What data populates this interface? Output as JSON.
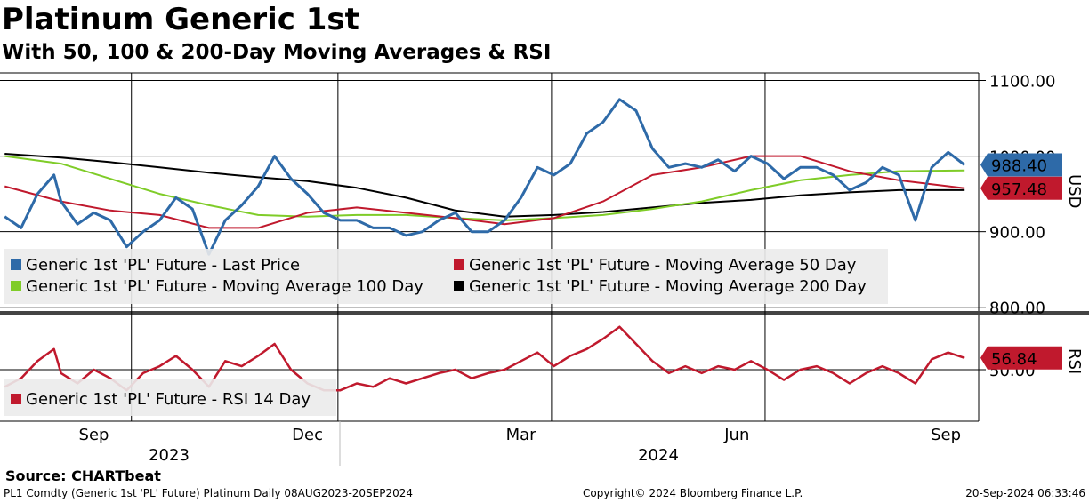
{
  "header": {
    "title": "Platinum Generic 1st",
    "subtitle": "With 50, 100 & 200-Day Moving Averages & RSI"
  },
  "footer": {
    "source": "Source: CHARTbeat",
    "ticker_info": "PL1 Comdty (Generic 1st 'PL' Future) Platinum  Daily 08AUG2023-20SEP2024",
    "copyright": "Copyright© 2024 Bloomberg Finance L.P.",
    "timestamp": "20-Sep-2024 06:33:46"
  },
  "chart_data": [
    {
      "type": "line",
      "panel": "price",
      "y_axis_label": "USD",
      "y_ticks": [
        "1100.00",
        "900.00",
        "800.00"
      ],
      "ylim": [
        795,
        1110
      ],
      "grid": true,
      "legend_position": "bottom-left",
      "x_months": [
        "Sep",
        "Dec",
        "Mar",
        "Jun",
        "Sep"
      ],
      "x_years": [
        "2023",
        "2024"
      ],
      "last_price_label": "988.40",
      "ma50_label": "957.48",
      "series": [
        {
          "name": "Generic 1st 'PL' Future - Last Price",
          "color": "#2e6aa8",
          "x": [
            "2023-08-08",
            "2023-08-15",
            "2023-08-22",
            "2023-08-29",
            "2023-09-01",
            "2023-09-08",
            "2023-09-15",
            "2023-09-22",
            "2023-09-29",
            "2023-10-06",
            "2023-10-13",
            "2023-10-20",
            "2023-10-27",
            "2023-11-03",
            "2023-11-10",
            "2023-11-17",
            "2023-11-24",
            "2023-12-01",
            "2023-12-08",
            "2023-12-15",
            "2023-12-22",
            "2023-12-29",
            "2024-01-05",
            "2024-01-12",
            "2024-01-19",
            "2024-01-26",
            "2024-02-02",
            "2024-02-09",
            "2024-02-16",
            "2024-02-23",
            "2024-03-01",
            "2024-03-08",
            "2024-03-15",
            "2024-03-22",
            "2024-03-29",
            "2024-04-05",
            "2024-04-12",
            "2024-04-19",
            "2024-04-26",
            "2024-05-03",
            "2024-05-10",
            "2024-05-17",
            "2024-05-24",
            "2024-05-31",
            "2024-06-07",
            "2024-06-14",
            "2024-06-21",
            "2024-06-28",
            "2024-07-05",
            "2024-07-12",
            "2024-07-19",
            "2024-07-26",
            "2024-08-02",
            "2024-08-09",
            "2024-08-16",
            "2024-08-23",
            "2024-08-30",
            "2024-09-06",
            "2024-09-13",
            "2024-09-20"
          ],
          "values": [
            920,
            905,
            950,
            975,
            940,
            910,
            925,
            915,
            880,
            900,
            915,
            945,
            930,
            870,
            915,
            935,
            960,
            1000,
            970,
            950,
            925,
            915,
            915,
            905,
            905,
            895,
            900,
            915,
            925,
            900,
            900,
            915,
            945,
            985,
            975,
            990,
            1030,
            1045,
            1075,
            1060,
            1010,
            985,
            990,
            985,
            995,
            980,
            1000,
            990,
            970,
            985,
            985,
            975,
            955,
            965,
            985,
            975,
            915,
            985,
            1005,
            988.4
          ]
        },
        {
          "name": "Generic 1st 'PL' Future - Moving Average 50 Day",
          "color": "#c0192d",
          "x": [
            "2023-08-08",
            "2023-09-01",
            "2023-09-22",
            "2023-10-13",
            "2023-11-03",
            "2023-11-24",
            "2023-12-15",
            "2024-01-05",
            "2024-01-26",
            "2024-02-16",
            "2024-03-08",
            "2024-03-29",
            "2024-04-19",
            "2024-05-10",
            "2024-05-31",
            "2024-06-21",
            "2024-07-12",
            "2024-08-02",
            "2024-08-23",
            "2024-09-20"
          ],
          "values": [
            960,
            940,
            928,
            922,
            905,
            905,
            925,
            932,
            925,
            918,
            910,
            918,
            940,
            975,
            985,
            1000,
            1000,
            980,
            968,
            957.48
          ]
        },
        {
          "name": "Generic 1st 'PL' Future - Moving Average 100 Day",
          "color": "#7fcc28",
          "x": [
            "2023-08-08",
            "2023-09-01",
            "2023-09-22",
            "2023-10-13",
            "2023-11-03",
            "2023-11-24",
            "2023-12-15",
            "2024-01-05",
            "2024-01-26",
            "2024-02-16",
            "2024-03-08",
            "2024-03-29",
            "2024-04-19",
            "2024-05-10",
            "2024-05-31",
            "2024-06-21",
            "2024-07-12",
            "2024-08-02",
            "2024-08-23",
            "2024-09-20"
          ],
          "values": [
            1000,
            990,
            970,
            950,
            935,
            922,
            920,
            922,
            922,
            918,
            915,
            918,
            922,
            930,
            940,
            955,
            968,
            975,
            980,
            981
          ]
        },
        {
          "name": "Generic 1st 'PL' Future - Moving Average 200 Day",
          "color": "#000000",
          "x": [
            "2023-08-08",
            "2023-09-01",
            "2023-09-22",
            "2023-10-13",
            "2023-11-03",
            "2023-11-24",
            "2023-12-15",
            "2024-01-05",
            "2024-01-26",
            "2024-02-16",
            "2024-03-08",
            "2024-03-29",
            "2024-04-19",
            "2024-05-10",
            "2024-05-31",
            "2024-06-21",
            "2024-07-12",
            "2024-08-02",
            "2024-08-23",
            "2024-09-20"
          ],
          "values": [
            1003,
            998,
            992,
            985,
            978,
            972,
            967,
            958,
            945,
            928,
            920,
            922,
            926,
            932,
            938,
            942,
            948,
            952,
            955,
            955
          ]
        }
      ]
    },
    {
      "type": "line",
      "panel": "rsi",
      "y_axis_label": "RSI",
      "y_ticks": [
        "50.00"
      ],
      "ylim": [
        20,
        80
      ],
      "grid": true,
      "legend_position": "bottom-left",
      "last_rsi_label": "56.84",
      "series": [
        {
          "name": "Generic 1st 'PL' Future - RSI 14 Day",
          "color": "#c0192d",
          "x": [
            "2023-08-08",
            "2023-08-15",
            "2023-08-22",
            "2023-08-29",
            "2023-09-01",
            "2023-09-08",
            "2023-09-15",
            "2023-09-22",
            "2023-09-29",
            "2023-10-06",
            "2023-10-13",
            "2023-10-20",
            "2023-10-27",
            "2023-11-03",
            "2023-11-10",
            "2023-11-17",
            "2023-11-24",
            "2023-12-01",
            "2023-12-08",
            "2023-12-15",
            "2023-12-22",
            "2023-12-29",
            "2024-01-05",
            "2024-01-12",
            "2024-01-19",
            "2024-01-26",
            "2024-02-02",
            "2024-02-09",
            "2024-02-16",
            "2024-02-23",
            "2024-03-01",
            "2024-03-08",
            "2024-03-15",
            "2024-03-22",
            "2024-03-29",
            "2024-04-05",
            "2024-04-12",
            "2024-04-19",
            "2024-04-26",
            "2024-05-03",
            "2024-05-10",
            "2024-05-17",
            "2024-05-24",
            "2024-05-31",
            "2024-06-07",
            "2024-06-14",
            "2024-06-21",
            "2024-06-28",
            "2024-07-05",
            "2024-07-12",
            "2024-07-19",
            "2024-07-26",
            "2024-08-02",
            "2024-08-09",
            "2024-08-16",
            "2024-08-23",
            "2024-08-30",
            "2024-09-06",
            "2024-09-13",
            "2024-09-20"
          ],
          "values": [
            40,
            45,
            55,
            62,
            48,
            42,
            50,
            45,
            38,
            48,
            52,
            58,
            50,
            40,
            55,
            52,
            58,
            65,
            50,
            42,
            38,
            38,
            42,
            40,
            45,
            42,
            45,
            48,
            50,
            45,
            48,
            50,
            55,
            60,
            52,
            58,
            62,
            68,
            75,
            65,
            55,
            48,
            52,
            48,
            52,
            50,
            55,
            50,
            44,
            50,
            52,
            48,
            42,
            48,
            52,
            48,
            42,
            56,
            60,
            56.84
          ]
        }
      ]
    }
  ]
}
